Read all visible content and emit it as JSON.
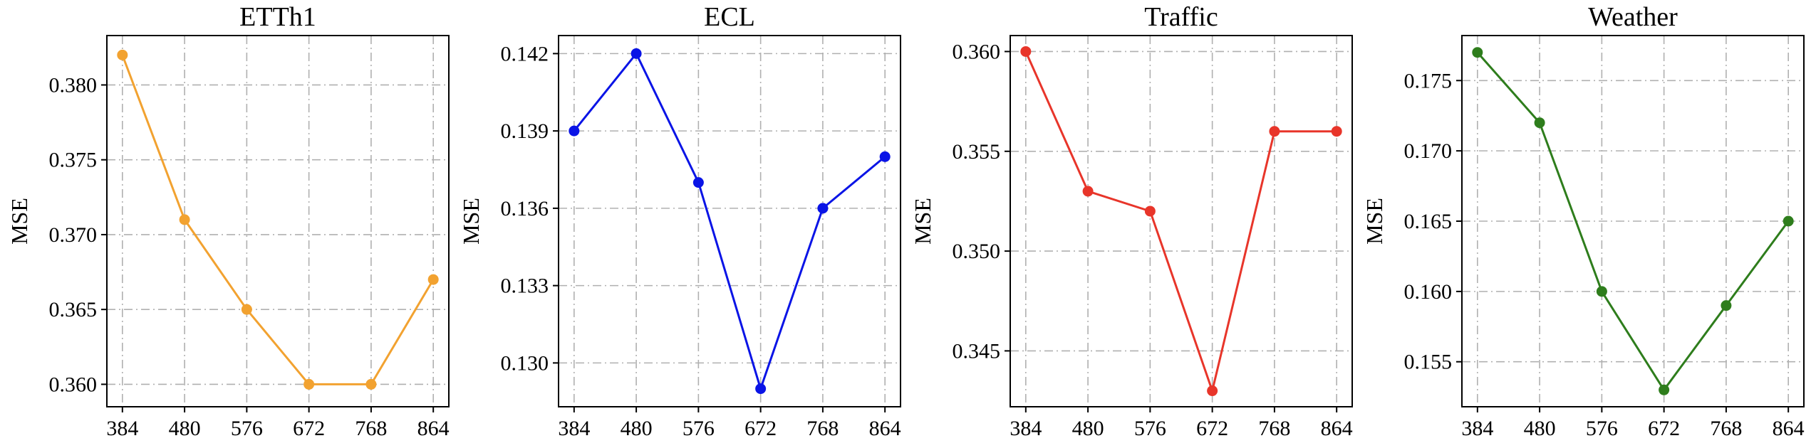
{
  "chart_data": [
    {
      "type": "line",
      "title": "ETTh1",
      "xlabel": "",
      "ylabel": "MSE",
      "x": [
        384,
        480,
        576,
        672,
        768,
        864
      ],
      "y": [
        0.382,
        0.371,
        0.365,
        0.36,
        0.36,
        0.367
      ],
      "yticks": [
        0.36,
        0.365,
        0.37,
        0.375,
        0.38
      ],
      "ytick_labels": [
        "0.360",
        "0.365",
        "0.370",
        "0.375",
        "0.380"
      ],
      "xticks": [
        "384",
        "480",
        "576",
        "672",
        "768",
        "864"
      ],
      "ylim": [
        0.3585,
        0.3833
      ],
      "xlim": [
        360,
        888
      ],
      "color": "#f2a230",
      "grid": true
    },
    {
      "type": "line",
      "title": "ECL",
      "xlabel": "",
      "ylabel": "MSE",
      "x": [
        384,
        480,
        576,
        672,
        768,
        864
      ],
      "y": [
        0.139,
        0.142,
        0.137,
        0.129,
        0.136,
        0.138
      ],
      "yticks": [
        0.13,
        0.133,
        0.136,
        0.139,
        0.142
      ],
      "ytick_labels": [
        "0.130",
        "0.133",
        "0.136",
        "0.139",
        "0.142"
      ],
      "xticks": [
        "384",
        "480",
        "576",
        "672",
        "768",
        "864"
      ],
      "ylim": [
        0.1283,
        0.1427
      ],
      "xlim": [
        360,
        888
      ],
      "color": "#0a14e6",
      "grid": true
    },
    {
      "type": "line",
      "title": "Traffic",
      "xlabel": "",
      "ylabel": "MSE",
      "x": [
        384,
        480,
        576,
        672,
        768,
        864
      ],
      "y": [
        0.36,
        0.353,
        0.352,
        0.343,
        0.356,
        0.356
      ],
      "yticks": [
        0.345,
        0.35,
        0.355,
        0.36
      ],
      "ytick_labels": [
        "0.345",
        "0.350",
        "0.355",
        "0.360"
      ],
      "xticks": [
        "384",
        "480",
        "576",
        "672",
        "768",
        "864"
      ],
      "ylim": [
        0.3422,
        0.3608
      ],
      "xlim": [
        360,
        888
      ],
      "color": "#e8352a",
      "grid": true
    },
    {
      "type": "line",
      "title": "Weather",
      "xlabel": "",
      "ylabel": "MSE",
      "x": [
        384,
        480,
        576,
        672,
        768,
        864
      ],
      "y": [
        0.177,
        0.172,
        0.16,
        0.153,
        0.159,
        0.165
      ],
      "yticks": [
        0.155,
        0.16,
        0.165,
        0.17,
        0.175
      ],
      "ytick_labels": [
        "0.155",
        "0.160",
        "0.165",
        "0.170",
        "0.175"
      ],
      "xticks": [
        "384",
        "480",
        "576",
        "672",
        "768",
        "864"
      ],
      "ylim": [
        0.1518,
        0.1782
      ],
      "xlim": [
        360,
        888
      ],
      "color": "#2e7d1c",
      "grid": true
    }
  ]
}
